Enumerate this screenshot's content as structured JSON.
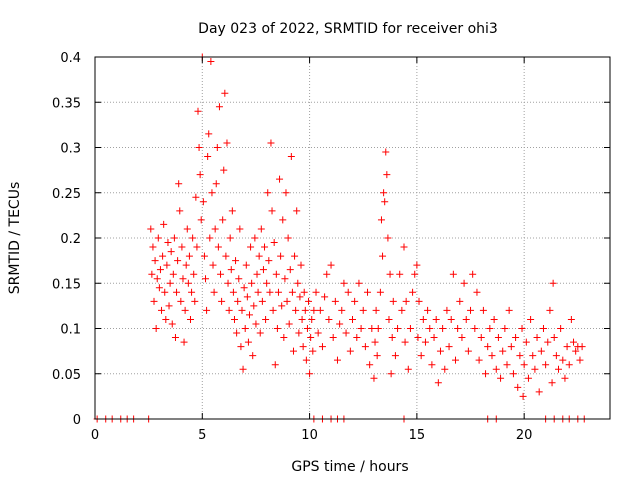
{
  "chart_data": {
    "type": "scatter",
    "title": "Day 023 of 2022, SRMTID for receiver ohi3",
    "xlabel": "GPS time / hours",
    "ylabel": "SRMTID / TECUs",
    "xlim": [
      0,
      24
    ],
    "ylim": [
      0,
      0.4
    ],
    "xticks": [
      0,
      5,
      10,
      15,
      20
    ],
    "xtick_labels": [
      "0",
      "5",
      "10",
      "15",
      "20"
    ],
    "yticks": [
      0,
      0.05,
      0.1,
      0.15,
      0.2,
      0.25,
      0.3,
      0.35,
      0.4
    ],
    "ytick_labels": [
      "0",
      "0.05",
      "0.1",
      "0.15",
      "0.2",
      "0.25",
      "0.3",
      "0.35",
      "0.4"
    ],
    "grid": true,
    "marker": "+",
    "color": "#ff0000",
    "series": [
      {
        "name": "SRMTID",
        "points": [
          [
            2.6,
            0.21
          ],
          [
            2.65,
            0.16
          ],
          [
            2.7,
            0.19
          ],
          [
            2.75,
            0.13
          ],
          [
            2.8,
            0.175
          ],
          [
            2.85,
            0.1
          ],
          [
            2.9,
            0.155
          ],
          [
            2.95,
            0.2
          ],
          [
            3.0,
            0.145
          ],
          [
            3.05,
            0.165
          ],
          [
            3.1,
            0.12
          ],
          [
            3.15,
            0.18
          ],
          [
            3.2,
            0.215
          ],
          [
            3.25,
            0.14
          ],
          [
            3.3,
            0.11
          ],
          [
            3.35,
            0.17
          ],
          [
            3.4,
            0.195
          ],
          [
            3.45,
            0.125
          ],
          [
            3.5,
            0.15
          ],
          [
            3.55,
            0.185
          ],
          [
            3.6,
            0.105
          ],
          [
            3.65,
            0.16
          ],
          [
            3.7,
            0.2
          ],
          [
            3.75,
            0.09
          ],
          [
            3.8,
            0.14
          ],
          [
            3.85,
            0.175
          ],
          [
            3.9,
            0.26
          ],
          [
            3.95,
            0.23
          ],
          [
            4.0,
            0.13
          ],
          [
            4.05,
            0.19
          ],
          [
            4.1,
            0.155
          ],
          [
            4.15,
            0.085
          ],
          [
            4.2,
            0.12
          ],
          [
            4.25,
            0.17
          ],
          [
            4.3,
            0.21
          ],
          [
            4.35,
            0.15
          ],
          [
            4.4,
            0.18
          ],
          [
            4.45,
            0.11
          ],
          [
            4.5,
            0.14
          ],
          [
            4.55,
            0.2
          ],
          [
            4.6,
            0.16
          ],
          [
            4.65,
            0.13
          ],
          [
            4.7,
            0.245
          ],
          [
            4.75,
            0.19
          ],
          [
            4.8,
            0.34
          ],
          [
            4.85,
            0.3
          ],
          [
            4.9,
            0.27
          ],
          [
            4.95,
            0.22
          ],
          [
            5.0,
            0.4
          ],
          [
            5.05,
            0.24
          ],
          [
            5.1,
            0.18
          ],
          [
            5.15,
            0.155
          ],
          [
            5.2,
            0.12
          ],
          [
            5.25,
            0.29
          ],
          [
            5.3,
            0.315
          ],
          [
            5.35,
            0.2
          ],
          [
            5.4,
            0.395
          ],
          [
            5.45,
            0.25
          ],
          [
            5.5,
            0.17
          ],
          [
            5.55,
            0.14
          ],
          [
            5.6,
            0.21
          ],
          [
            5.65,
            0.26
          ],
          [
            5.7,
            0.3
          ],
          [
            5.75,
            0.19
          ],
          [
            5.8,
            0.345
          ],
          [
            5.85,
            0.16
          ],
          [
            5.9,
            0.13
          ],
          [
            5.95,
            0.22
          ],
          [
            6.0,
            0.275
          ],
          [
            6.05,
            0.36
          ],
          [
            6.1,
            0.18
          ],
          [
            6.15,
            0.305
          ],
          [
            6.2,
            0.15
          ],
          [
            6.25,
            0.12
          ],
          [
            6.3,
            0.2
          ],
          [
            6.35,
            0.165
          ],
          [
            6.4,
            0.23
          ],
          [
            6.45,
            0.14
          ],
          [
            6.5,
            0.11
          ],
          [
            6.55,
            0.175
          ],
          [
            6.6,
            0.095
          ],
          [
            6.65,
            0.13
          ],
          [
            6.7,
            0.155
          ],
          [
            6.75,
            0.21
          ],
          [
            6.8,
            0.08
          ],
          [
            6.85,
            0.12
          ],
          [
            6.9,
            0.055
          ],
          [
            6.95,
            0.145
          ],
          [
            7.0,
            0.1
          ],
          [
            7.05,
            0.17
          ],
          [
            7.1,
            0.135
          ],
          [
            7.15,
            0.085
          ],
          [
            7.2,
            0.115
          ],
          [
            7.25,
            0.19
          ],
          [
            7.3,
            0.15
          ],
          [
            7.35,
            0.07
          ],
          [
            7.4,
            0.125
          ],
          [
            7.45,
            0.2
          ],
          [
            7.5,
            0.105
          ],
          [
            7.55,
            0.16
          ],
          [
            7.6,
            0.14
          ],
          [
            7.65,
            0.18
          ],
          [
            7.7,
            0.095
          ],
          [
            7.75,
            0.21
          ],
          [
            7.8,
            0.13
          ],
          [
            7.85,
            0.165
          ],
          [
            7.9,
            0.19
          ],
          [
            7.95,
            0.11
          ],
          [
            8.0,
            0.15
          ],
          [
            8.05,
            0.25
          ],
          [
            8.1,
            0.175
          ],
          [
            8.15,
            0.14
          ],
          [
            8.2,
            0.305
          ],
          [
            8.25,
            0.23
          ],
          [
            8.3,
            0.12
          ],
          [
            8.35,
            0.195
          ],
          [
            8.4,
            0.06
          ],
          [
            8.45,
            0.16
          ],
          [
            8.5,
            0.1
          ],
          [
            8.55,
            0.14
          ],
          [
            8.6,
            0.265
          ],
          [
            8.65,
            0.18
          ],
          [
            8.7,
            0.125
          ],
          [
            8.75,
            0.22
          ],
          [
            8.8,
            0.09
          ],
          [
            8.85,
            0.155
          ],
          [
            8.9,
            0.25
          ],
          [
            8.95,
            0.13
          ],
          [
            9.0,
            0.2
          ],
          [
            9.05,
            0.105
          ],
          [
            9.1,
            0.165
          ],
          [
            9.15,
            0.29
          ],
          [
            9.2,
            0.14
          ],
          [
            9.25,
            0.075
          ],
          [
            9.3,
            0.18
          ],
          [
            9.35,
            0.12
          ],
          [
            9.4,
            0.23
          ],
          [
            9.45,
            0.15
          ],
          [
            9.5,
            0.095
          ],
          [
            9.55,
            0.135
          ],
          [
            9.6,
            0.17
          ],
          [
            9.65,
            0.11
          ],
          [
            9.7,
            0.08
          ],
          [
            9.75,
            0.14
          ],
          [
            9.8,
            0.12
          ],
          [
            9.85,
            0.065
          ],
          [
            9.9,
            0.1
          ],
          [
            9.95,
            0.13
          ],
          [
            10.0,
            0.05
          ],
          [
            10.05,
            0.09
          ],
          [
            10.1,
            0.11
          ],
          [
            10.15,
            0.075
          ],
          [
            10.2,
            0.12
          ],
          [
            10.3,
            0.14
          ],
          [
            10.4,
            0.095
          ],
          [
            10.5,
            0.12
          ],
          [
            10.6,
            0.08
          ],
          [
            10.7,
            0.135
          ],
          [
            10.8,
            0.16
          ],
          [
            10.9,
            0.11
          ],
          [
            11.0,
            0.17
          ],
          [
            11.1,
            0.09
          ],
          [
            11.2,
            0.13
          ],
          [
            11.3,
            0.065
          ],
          [
            11.4,
            0.105
          ],
          [
            11.5,
            0.12
          ],
          [
            11.6,
            0.15
          ],
          [
            11.7,
            0.095
          ],
          [
            11.8,
            0.14
          ],
          [
            11.9,
            0.075
          ],
          [
            12.0,
            0.11
          ],
          [
            12.1,
            0.13
          ],
          [
            12.2,
            0.09
          ],
          [
            12.3,
            0.15
          ],
          [
            12.4,
            0.1
          ],
          [
            12.5,
            0.12
          ],
          [
            12.6,
            0.08
          ],
          [
            12.7,
            0.14
          ],
          [
            12.8,
            0.06
          ],
          [
            12.9,
            0.1
          ],
          [
            13.0,
            0.045
          ],
          [
            13.05,
            0.085
          ],
          [
            13.1,
            0.12
          ],
          [
            13.15,
            0.07
          ],
          [
            13.2,
            0.1
          ],
          [
            13.3,
            0.14
          ],
          [
            13.35,
            0.22
          ],
          [
            13.4,
            0.18
          ],
          [
            13.45,
            0.25
          ],
          [
            13.5,
            0.24
          ],
          [
            13.55,
            0.295
          ],
          [
            13.6,
            0.27
          ],
          [
            13.65,
            0.2
          ],
          [
            13.7,
            0.11
          ],
          [
            13.75,
            0.16
          ],
          [
            13.8,
            0.05
          ],
          [
            13.85,
            0.09
          ],
          [
            13.9,
            0.13
          ],
          [
            14.0,
            0.07
          ],
          [
            14.1,
            0.1
          ],
          [
            14.2,
            0.16
          ],
          [
            14.3,
            0.12
          ],
          [
            14.4,
            0.19
          ],
          [
            14.45,
            0.085
          ],
          [
            14.5,
            0.13
          ],
          [
            14.6,
            0.055
          ],
          [
            14.7,
            0.1
          ],
          [
            14.8,
            0.14
          ],
          [
            14.9,
            0.16
          ],
          [
            15.0,
            0.17
          ],
          [
            15.05,
            0.09
          ],
          [
            15.1,
            0.13
          ],
          [
            15.2,
            0.07
          ],
          [
            15.3,
            0.11
          ],
          [
            15.4,
            0.085
          ],
          [
            15.5,
            0.12
          ],
          [
            15.6,
            0.1
          ],
          [
            15.7,
            0.06
          ],
          [
            15.8,
            0.09
          ],
          [
            15.9,
            0.11
          ],
          [
            16.0,
            0.04
          ],
          [
            16.1,
            0.075
          ],
          [
            16.2,
            0.1
          ],
          [
            16.3,
            0.055
          ],
          [
            16.4,
            0.12
          ],
          [
            16.5,
            0.08
          ],
          [
            16.6,
            0.11
          ],
          [
            16.7,
            0.16
          ],
          [
            16.8,
            0.065
          ],
          [
            16.9,
            0.1
          ],
          [
            17.0,
            0.13
          ],
          [
            17.1,
            0.09
          ],
          [
            17.2,
            0.15
          ],
          [
            17.3,
            0.11
          ],
          [
            17.4,
            0.075
          ],
          [
            17.5,
            0.12
          ],
          [
            17.6,
            0.16
          ],
          [
            17.7,
            0.1
          ],
          [
            17.8,
            0.14
          ],
          [
            17.9,
            0.065
          ],
          [
            18.0,
            0.09
          ],
          [
            18.1,
            0.12
          ],
          [
            18.2,
            0.05
          ],
          [
            18.3,
            0.08
          ],
          [
            18.4,
            0.1
          ],
          [
            18.5,
            0.07
          ],
          [
            18.6,
            0.11
          ],
          [
            18.7,
            0.055
          ],
          [
            18.8,
            0.09
          ],
          [
            18.9,
            0.045
          ],
          [
            19.0,
            0.075
          ],
          [
            19.1,
            0.1
          ],
          [
            19.2,
            0.06
          ],
          [
            19.3,
            0.12
          ],
          [
            19.4,
            0.08
          ],
          [
            19.5,
            0.05
          ],
          [
            19.6,
            0.09
          ],
          [
            19.7,
            0.035
          ],
          [
            19.8,
            0.07
          ],
          [
            19.9,
            0.1
          ],
          [
            19.95,
            0.025
          ],
          [
            20.0,
            0.06
          ],
          [
            20.1,
            0.085
          ],
          [
            20.2,
            0.045
          ],
          [
            20.3,
            0.11
          ],
          [
            20.4,
            0.07
          ],
          [
            20.5,
            0.055
          ],
          [
            20.6,
            0.09
          ],
          [
            20.7,
            0.03
          ],
          [
            20.8,
            0.075
          ],
          [
            20.9,
            0.1
          ],
          [
            21.0,
            0.06
          ],
          [
            21.1,
            0.085
          ],
          [
            21.2,
            0.12
          ],
          [
            21.3,
            0.04
          ],
          [
            21.35,
            0.15
          ],
          [
            21.4,
            0.09
          ],
          [
            21.5,
            0.07
          ],
          [
            21.6,
            0.055
          ],
          [
            21.7,
            0.1
          ],
          [
            21.8,
            0.065
          ],
          [
            21.9,
            0.045
          ],
          [
            22.0,
            0.08
          ],
          [
            22.1,
            0.06
          ],
          [
            22.2,
            0.11
          ],
          [
            22.3,
            0.085
          ],
          [
            22.4,
            0.075
          ],
          [
            22.5,
            0.08
          ],
          [
            22.6,
            0.065
          ],
          [
            22.7,
            0.08
          ],
          [
            0.1,
            0.0
          ],
          [
            0.5,
            0.0
          ],
          [
            0.8,
            0.0
          ],
          [
            1.2,
            0.0
          ],
          [
            1.5,
            0.0
          ],
          [
            1.8,
            0.0
          ],
          [
            2.5,
            0.0
          ],
          [
            10.2,
            0.0
          ],
          [
            10.6,
            0.0
          ],
          [
            11.0,
            0.0
          ],
          [
            11.3,
            0.0
          ],
          [
            11.6,
            0.0
          ],
          [
            14.4,
            0.0
          ],
          [
            18.3,
            0.0
          ],
          [
            18.7,
            0.0
          ],
          [
            21.0,
            0.0
          ],
          [
            21.4,
            0.0
          ],
          [
            21.8,
            0.0
          ],
          [
            22.1,
            0.0
          ],
          [
            22.5,
            0.0
          ],
          [
            22.8,
            0.0
          ]
        ]
      }
    ]
  }
}
